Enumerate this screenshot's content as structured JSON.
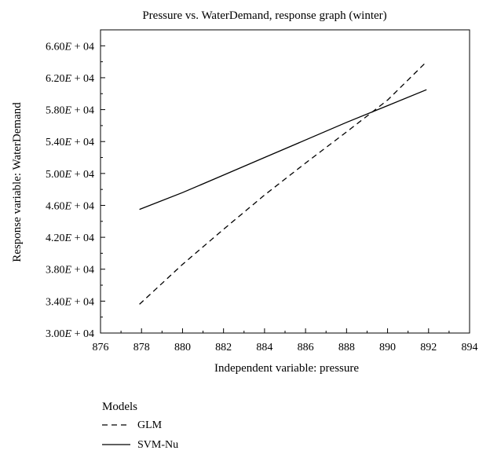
{
  "chart_data": {
    "type": "line",
    "title": "Pressure vs. WaterDemand, response graph (winter)",
    "xlabel": "Independent variable: pressure",
    "ylabel": "Response variable: WaterDemand",
    "xlim": [
      876,
      894
    ],
    "ylim": [
      30000,
      68000
    ],
    "x_ticks": [
      876,
      878,
      880,
      882,
      884,
      886,
      888,
      890,
      892,
      894
    ],
    "y_ticks": [
      30000,
      34000,
      38000,
      42000,
      46000,
      50000,
      54000,
      58000,
      62000,
      66000
    ],
    "x_tick_labels": [
      "876",
      "878",
      "880",
      "882",
      "884",
      "886",
      "888",
      "890",
      "892",
      "894"
    ],
    "y_tick_mantissas": [
      "3.00",
      "3.40",
      "3.80",
      "4.20",
      "4.60",
      "5.00",
      "5.40",
      "5.80",
      "6.20",
      "6.60"
    ],
    "y_tick_exponent": "04",
    "grid": false,
    "legend": {
      "title": "Models",
      "placement": "bottom-left",
      "entries": [
        {
          "label": "GLM",
          "style": "dashed"
        },
        {
          "label": "SVM-Nu",
          "style": "solid"
        }
      ]
    },
    "series": [
      {
        "name": "GLM",
        "style": "dashed",
        "color": "#000000",
        "x": [
          877.9,
          880,
          882,
          884,
          886,
          888,
          890,
          891.9
        ],
        "y": [
          33600,
          38600,
          43000,
          47300,
          51300,
          55200,
          59200,
          64000
        ]
      },
      {
        "name": "SVM-Nu",
        "style": "solid",
        "color": "#000000",
        "x": [
          877.9,
          880,
          882,
          884,
          886,
          888,
          890,
          891.9
        ],
        "y": [
          45500,
          47600,
          49800,
          52000,
          54200,
          56400,
          58500,
          60500
        ]
      }
    ]
  }
}
